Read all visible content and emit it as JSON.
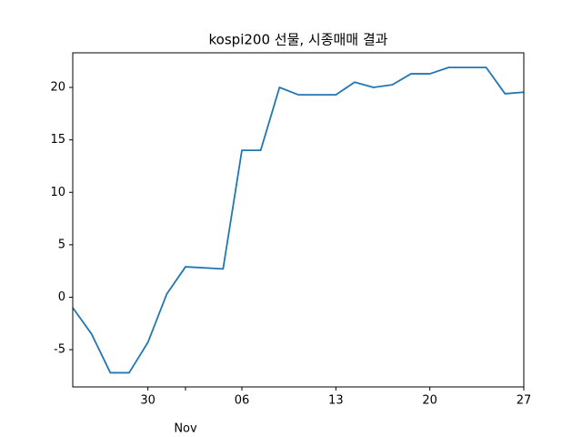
{
  "chart_data": {
    "type": "line",
    "title": "kospi200 선물, 시종매매 결과",
    "x": [
      0,
      1,
      2,
      3,
      4,
      5,
      6,
      8,
      9,
      10,
      11,
      12,
      14,
      15,
      16,
      17,
      18,
      19,
      20,
      21,
      22,
      23,
      24
    ],
    "series": [
      {
        "color": "#1f77b4",
        "values": [
          -1.0,
          -3.5,
          -7.2,
          -7.2,
          -4.3,
          0.3,
          2.9,
          2.7,
          14.0,
          14.0,
          20.0,
          19.3,
          19.3,
          20.5,
          20.0,
          20.25,
          21.3,
          21.3,
          21.9,
          21.9,
          21.9,
          19.4,
          19.55
        ]
      }
    ],
    "xlim": [
      0,
      24
    ],
    "xticks": [
      {
        "value": 4,
        "label": "30"
      },
      {
        "value": 9,
        "label": "06"
      },
      {
        "value": 14,
        "label": "13"
      },
      {
        "value": 19,
        "label": "20"
      },
      {
        "value": 24,
        "label": "27"
      }
    ],
    "x_month_ticks": [
      {
        "value": 6,
        "label": "Nov"
      }
    ],
    "ylim": [
      -8.55,
      23.3
    ],
    "yticks": [
      -5,
      0,
      5,
      10,
      15,
      20
    ]
  }
}
